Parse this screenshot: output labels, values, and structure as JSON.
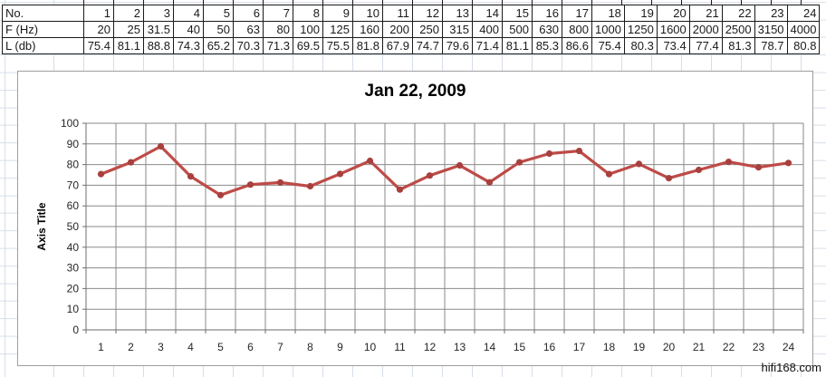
{
  "table": {
    "rows": [
      {
        "label": "No.",
        "values": [
          "1",
          "2",
          "3",
          "4",
          "5",
          "6",
          "7",
          "8",
          "9",
          "10",
          "11",
          "12",
          "13",
          "14",
          "15",
          "16",
          "17",
          "18",
          "19",
          "20",
          "21",
          "22",
          "23",
          "24"
        ]
      },
      {
        "label": "F (Hz)",
        "values": [
          "20",
          "25",
          "31.5",
          "40",
          "50",
          "63",
          "80",
          "100",
          "125",
          "160",
          "200",
          "250",
          "315",
          "400",
          "500",
          "630",
          "800",
          "1000",
          "1250",
          "1600",
          "2000",
          "2500",
          "3150",
          "4000"
        ]
      },
      {
        "label": "L (db)",
        "values": [
          "75.4",
          "81.1",
          "88.8",
          "74.3",
          "65.2",
          "70.3",
          "71.3",
          "69.5",
          "75.5",
          "81.8",
          "67.9",
          "74.7",
          "79.6",
          "71.4",
          "81.1",
          "85.3",
          "86.6",
          "75.4",
          "80.3",
          "73.4",
          "77.4",
          "81.3",
          "78.7",
          "80.8"
        ]
      }
    ]
  },
  "chart_data": {
    "type": "line",
    "title": "Jan 22, 2009",
    "xlabel": "",
    "ylabel": "Axis Title",
    "categories": [
      1,
      2,
      3,
      4,
      5,
      6,
      7,
      8,
      9,
      10,
      11,
      12,
      13,
      14,
      15,
      16,
      17,
      18,
      19,
      20,
      21,
      22,
      23,
      24
    ],
    "series": [
      {
        "name": "L (db)",
        "values": [
          75.4,
          81.1,
          88.8,
          74.3,
          65.2,
          70.3,
          71.3,
          69.5,
          75.5,
          81.8,
          67.9,
          74.7,
          79.6,
          71.4,
          81.1,
          85.3,
          86.6,
          75.4,
          80.3,
          73.4,
          77.4,
          81.3,
          78.7,
          80.8
        ]
      }
    ],
    "ylim": [
      0,
      100
    ],
    "ytick_step": 10,
    "grid": "both",
    "legend": "none",
    "line_color": "#BE4B48",
    "marker_color": "#A8403E",
    "gridline_color": "#8a8a8a",
    "axis_color": "#6e6e6e",
    "tick_label_color": "#262626"
  },
  "watermark": "hifi168.com"
}
